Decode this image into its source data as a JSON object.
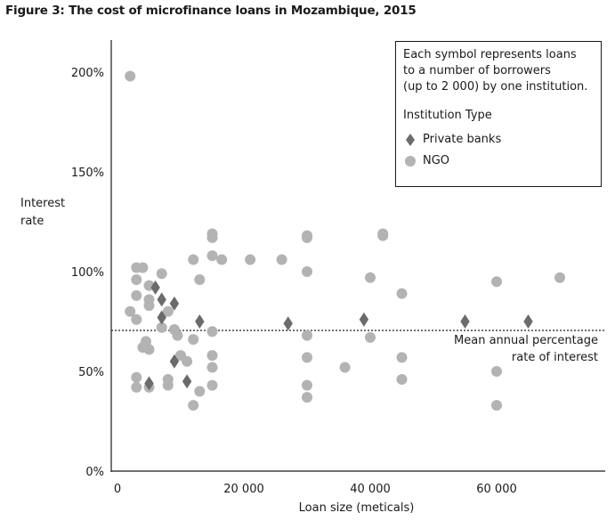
{
  "title": "Figure 3: The cost of microfinance loans in Mozambique, 2015",
  "chart_data": {
    "type": "scatter",
    "xlabel": "Loan size (meticals)",
    "ylabel": "Interest rate",
    "xlim": [
      0,
      77000
    ],
    "ylim": [
      0,
      215
    ],
    "xticks": [
      {
        "v": 0,
        "label": "0"
      },
      {
        "v": 20000,
        "label": "20 000"
      },
      {
        "v": 40000,
        "label": "40 000"
      },
      {
        "v": 60000,
        "label": "60 000"
      }
    ],
    "yticks": [
      {
        "v": 0,
        "label": "0%"
      },
      {
        "v": 50,
        "label": "50%"
      },
      {
        "v": 100,
        "label": "100%"
      },
      {
        "v": 150,
        "label": "150%"
      },
      {
        "v": 200,
        "label": "200%"
      }
    ],
    "grid": false,
    "legend": {
      "placement": "top-right",
      "note": "Each symbol represents loans\nto a number of borrowers\n(up to 2 000) by one institution.",
      "title": "Institution Type"
    },
    "reference_line": {
      "y": 70.5,
      "label": "Mean annual percentage\nrate of interest"
    },
    "series": [
      {
        "name": "Private banks",
        "marker": "diamond",
        "color": "#6b6b6b",
        "points": [
          [
            5000,
            44
          ],
          [
            6000,
            92
          ],
          [
            7000,
            86
          ],
          [
            7000,
            77
          ],
          [
            9000,
            84
          ],
          [
            9000,
            55
          ],
          [
            11000,
            45
          ],
          [
            13000,
            75
          ],
          [
            27000,
            74
          ],
          [
            39000,
            76
          ],
          [
            55000,
            75
          ],
          [
            65000,
            75
          ]
        ]
      },
      {
        "name": "NGO",
        "marker": "circle",
        "color": "#b3b3b3",
        "points": [
          [
            2000,
            198
          ],
          [
            2000,
            80
          ],
          [
            3000,
            102
          ],
          [
            3000,
            96
          ],
          [
            3000,
            88
          ],
          [
            3000,
            76
          ],
          [
            3000,
            47
          ],
          [
            3000,
            42
          ],
          [
            4000,
            102
          ],
          [
            4000,
            62
          ],
          [
            4500,
            65
          ],
          [
            5000,
            61
          ],
          [
            5000,
            42
          ],
          [
            5000,
            93
          ],
          [
            5000,
            86
          ],
          [
            5000,
            83
          ],
          [
            7000,
            99
          ],
          [
            7000,
            72
          ],
          [
            8000,
            80
          ],
          [
            8000,
            46
          ],
          [
            8000,
            43
          ],
          [
            9000,
            71
          ],
          [
            9500,
            68
          ],
          [
            10000,
            58
          ],
          [
            11000,
            55
          ],
          [
            12000,
            106
          ],
          [
            12000,
            66
          ],
          [
            12000,
            33
          ],
          [
            13000,
            96
          ],
          [
            13000,
            40
          ],
          [
            15000,
            119
          ],
          [
            15000,
            117
          ],
          [
            15000,
            108
          ],
          [
            15000,
            70
          ],
          [
            15000,
            58
          ],
          [
            15000,
            52
          ],
          [
            15000,
            43
          ],
          [
            16500,
            106
          ],
          [
            21000,
            106
          ],
          [
            26000,
            106
          ],
          [
            30000,
            118
          ],
          [
            30000,
            117
          ],
          [
            30000,
            100
          ],
          [
            30000,
            68
          ],
          [
            30000,
            57
          ],
          [
            30000,
            43
          ],
          [
            30000,
            37
          ],
          [
            36000,
            52
          ],
          [
            40000,
            97
          ],
          [
            40000,
            67
          ],
          [
            42000,
            119
          ],
          [
            42000,
            118
          ],
          [
            45000,
            89
          ],
          [
            45000,
            57
          ],
          [
            45000,
            46
          ],
          [
            60000,
            95
          ],
          [
            60000,
            50
          ],
          [
            60000,
            33
          ],
          [
            70000,
            97
          ]
        ]
      }
    ]
  }
}
